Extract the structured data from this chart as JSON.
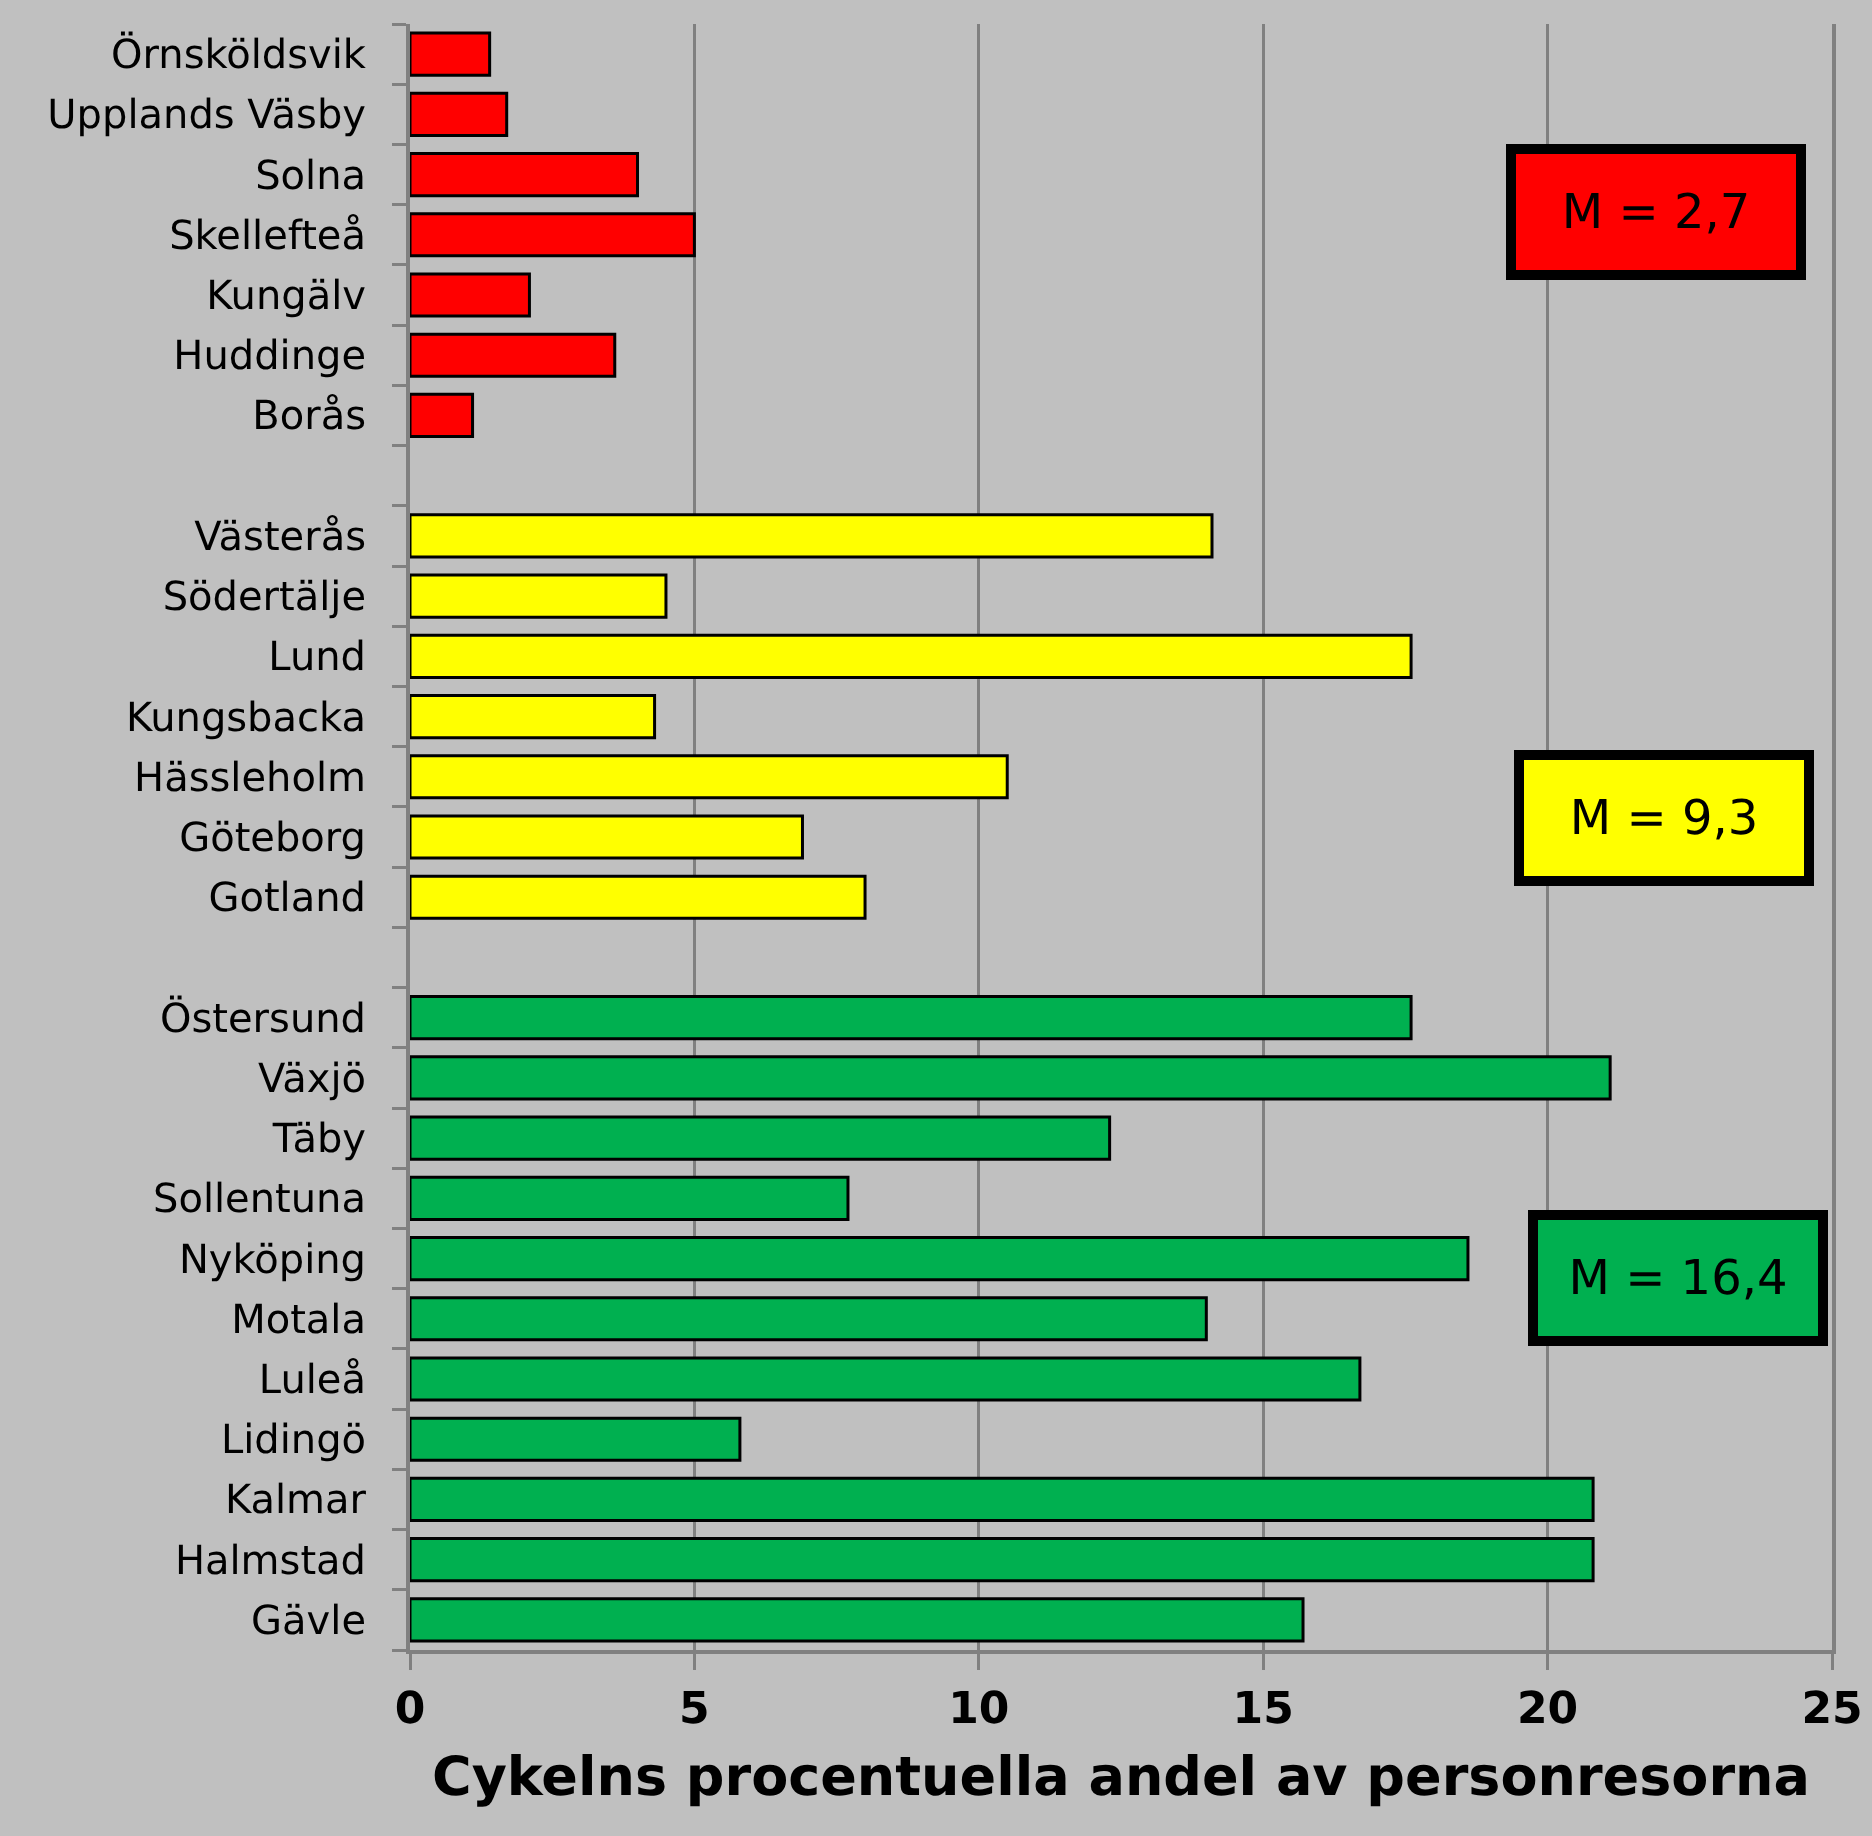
{
  "chart_data": {
    "type": "bar",
    "orientation": "horizontal",
    "categories": [
      "Örnsköldsvik",
      "Upplands Väsby",
      "Solna",
      "Skellefteå",
      "Kungälv",
      "Huddinge",
      "Borås",
      null,
      "Västerås",
      "Södertälje",
      "Lund",
      "Kungsbacka",
      "Hässleholm",
      "Göteborg",
      "Gotland",
      null,
      "Östersund",
      "Växjö",
      "Täby",
      "Sollentuna",
      "Nyköping",
      "Motala",
      "Luleå",
      "Lidingö",
      "Kalmar",
      "Halmstad",
      "Gävle"
    ],
    "values": [
      1.4,
      1.7,
      4.0,
      5.0,
      2.1,
      3.6,
      1.1,
      null,
      14.1,
      4.5,
      17.6,
      4.3,
      10.5,
      6.9,
      8.0,
      null,
      17.6,
      21.1,
      12.3,
      7.7,
      18.6,
      14.0,
      16.7,
      5.8,
      20.8,
      20.8,
      15.7
    ],
    "colors": [
      "#ff0000",
      "#ff0000",
      "#ff0000",
      "#ff0000",
      "#ff0000",
      "#ff0000",
      "#ff0000",
      null,
      "#ffff00",
      "#ffff00",
      "#ffff00",
      "#ffff00",
      "#ffff00",
      "#ffff00",
      "#ffff00",
      null,
      "#00b050",
      "#00b050",
      "#00b050",
      "#00b050",
      "#00b050",
      "#00b050",
      "#00b050",
      "#00b050",
      "#00b050",
      "#00b050",
      "#00b050"
    ],
    "xlim": [
      0,
      25
    ],
    "xticks": [
      0,
      5,
      10,
      15,
      20,
      25
    ],
    "xlabel": "Cykelns procentuella andel av personresorna",
    "grid": "x",
    "annotations": [
      "M = 2,7",
      "M = 9,3",
      "M = 16,4"
    ]
  }
}
